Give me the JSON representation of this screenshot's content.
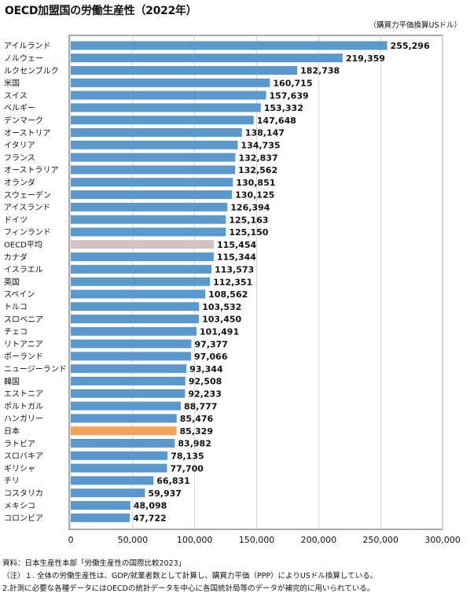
{
  "chart_data": {
    "type": "bar",
    "orientation": "horizontal",
    "title": "OECD加盟国の労働生産性（2022年）",
    "unit_label": "（購買力平価換算USドル）",
    "categories": [
      "アイルランド",
      "ノルウェー",
      "ルクセンブルク",
      "米国",
      "スイス",
      "ベルギー",
      "デンマーク",
      "オーストリア",
      "イタリア",
      "フランス",
      "オーストラリア",
      "オランダ",
      "スウェーデン",
      "アイスランド",
      "ドイツ",
      "フィンランド",
      "OECD平均",
      "カナダ",
      "イスラエル",
      "英国",
      "スペイン",
      "トルコ",
      "スロベニア",
      "チェコ",
      "リトアニア",
      "ポーランド",
      "ニュージーランド",
      "韓国",
      "エストニア",
      "ポルトガル",
      "ハンガリー",
      "日本",
      "ラトビア",
      "スロバキア",
      "ギリシャ",
      "チリ",
      "コスタリカ",
      "メキシコ",
      "コロンビア"
    ],
    "values": [
      255296,
      219359,
      182738,
      160715,
      157639,
      153332,
      147648,
      138147,
      134735,
      132837,
      132562,
      130851,
      130125,
      126394,
      125163,
      125150,
      115454,
      115344,
      113573,
      112351,
      108562,
      103532,
      103450,
      101491,
      97377,
      97066,
      93344,
      92508,
      92233,
      88777,
      85476,
      85329,
      83982,
      78135,
      77700,
      66831,
      59937,
      48098,
      47722
    ],
    "value_labels": [
      "255,296",
      "219,359",
      "182,738",
      "160,715",
      "157,639",
      "153,332",
      "147,648",
      "138,147",
      "134,735",
      "132,837",
      "132,562",
      "130,851",
      "130,125",
      "126,394",
      "125,163",
      "125,150",
      "115,454",
      "115,344",
      "113,573",
      "112,351",
      "108,562",
      "103,532",
      "103,450",
      "101,491",
      "97,377",
      "97,066",
      "93,344",
      "92,508",
      "92,233",
      "88,777",
      "85,476",
      "85,329",
      "83,982",
      "78,135",
      "77,700",
      "66,831",
      "59,937",
      "48,098",
      "47,722"
    ],
    "highlight": {
      "OECD平均": "#d3c3c3",
      "日本": "#f5a25c"
    },
    "bar_color": "#5b98cc",
    "xlim": [
      0,
      300000
    ],
    "xticks": [
      0,
      50000,
      100000,
      150000,
      200000,
      250000,
      300000
    ],
    "xtick_labels": [
      "0",
      "50,000",
      "100,000",
      "150,000",
      "200,000",
      "250,000",
      "300,000"
    ],
    "grid": true,
    "legend": "none"
  },
  "notes": {
    "source": "資料：日本生産性本部「労働生産性の国際比較2023」",
    "note1": "（注）１. 全体の労働生産性は、GDP/就業者数として計算し、購買力平価（PPP）によりUSドル換算している。",
    "note2": "2.計測に必要な各種データにはOECDの統計データを中心に各国統計局等のデータが補完的に用いられている。"
  }
}
